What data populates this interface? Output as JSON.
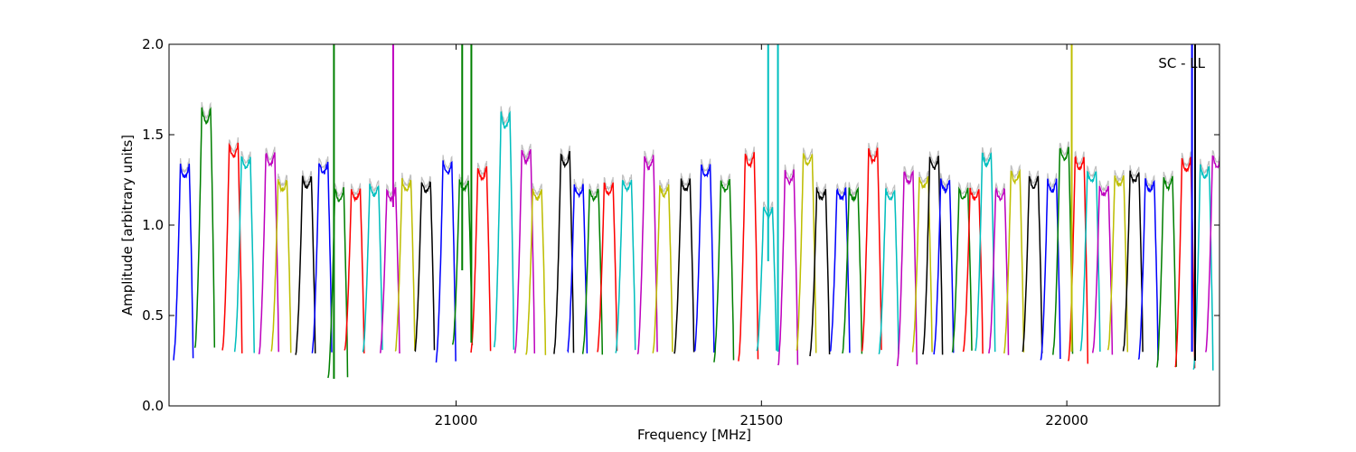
{
  "chart_data": {
    "type": "line",
    "title": "",
    "annotation": "SC - LL",
    "xlabel": "Frequency [MHz]",
    "ylabel": "Amplitude [arbitrary units]",
    "xlim": [
      20530,
      22250
    ],
    "ylim": [
      0.0,
      2.0
    ],
    "xticks": [
      21000,
      21500,
      22000
    ],
    "xtick_labels": [
      "21000",
      "21500",
      "22000"
    ],
    "yticks": [
      0.0,
      0.5,
      1.0,
      1.5,
      2.0
    ],
    "ytick_labels": [
      "0.0",
      "0.5",
      "1.0",
      "1.5",
      "2.0"
    ],
    "grid": false,
    "legend": "none",
    "background_trace_color": "#bfbfbf",
    "color_cycle": [
      "#0000ff",
      "#008000",
      "#ff0000",
      "#00bfbf",
      "#bf00bf",
      "#bfbf00",
      "#000000"
    ],
    "band_width_mhz": 32,
    "band_peak_centers": [
      20555,
      20590,
      20635,
      20655,
      20695,
      20715,
      20755,
      20782,
      20808,
      20835,
      20865,
      20893,
      20918,
      20950,
      20985,
      21012,
      21042,
      21080,
      21114,
      21132,
      21178,
      21200,
      21225,
      21249,
      21279,
      21315,
      21340,
      21375,
      21408,
      21440,
      21480,
      21510,
      21545,
      21575,
      21597,
      21630,
      21650,
      21682,
      21710,
      21740,
      21765,
      21782,
      21800,
      21830,
      21848,
      21868,
      21890,
      21915,
      21945,
      21975,
      21995,
      22020,
      22040,
      22060,
      22085,
      22110,
      22135,
      22165,
      22195,
      22225,
      22245
    ],
    "band_peak_values": [
      1.33,
      1.65,
      1.45,
      1.38,
      1.4,
      1.25,
      1.27,
      1.35,
      1.2,
      1.2,
      1.22,
      1.2,
      1.25,
      1.24,
      1.35,
      1.25,
      1.32,
      1.62,
      1.42,
      1.2,
      1.4,
      1.22,
      1.2,
      1.23,
      1.25,
      1.38,
      1.22,
      1.25,
      1.33,
      1.25,
      1.4,
      1.1,
      1.3,
      1.4,
      1.2,
      1.2,
      1.2,
      1.42,
      1.2,
      1.3,
      1.27,
      1.38,
      1.25,
      1.2,
      1.2,
      1.4,
      1.2,
      1.3,
      1.27,
      1.25,
      1.43,
      1.38,
      1.3,
      1.22,
      1.28,
      1.3,
      1.25,
      1.27,
      1.37,
      1.33,
      1.39
    ],
    "band_min_values": [
      0.26,
      0.32,
      0.3,
      0.3,
      0.29,
      0.3,
      0.29,
      0.3,
      0.15,
      0.3,
      0.3,
      0.29,
      0.3,
      0.3,
      0.25,
      0.33,
      0.3,
      0.32,
      0.29,
      0.28,
      0.29,
      0.3,
      0.29,
      0.3,
      0.3,
      0.29,
      0.3,
      0.29,
      0.3,
      0.25,
      0.25,
      0.3,
      0.23,
      0.3,
      0.28,
      0.3,
      0.29,
      0.3,
      0.29,
      0.22,
      0.3,
      0.29,
      0.29,
      0.3,
      0.29,
      0.3,
      0.29,
      0.3,
      0.3,
      0.25,
      0.29,
      0.24,
      0.3,
      0.29,
      0.3,
      0.3,
      0.25,
      0.21,
      0.21,
      0.2,
      0.3
    ],
    "spikes": [
      {
        "x": 20800,
        "ymin": 0.15,
        "ymax": 2.0,
        "color": "#008000"
      },
      {
        "x": 20897,
        "ymin": 1.1,
        "ymax": 2.0,
        "color": "#bf00bf"
      },
      {
        "x": 21010,
        "ymin": 0.75,
        "ymax": 2.0,
        "color": "#008000"
      },
      {
        "x": 21025,
        "ymin": 0.35,
        "ymax": 2.0,
        "color": "#008000"
      },
      {
        "x": 21511,
        "ymin": 0.8,
        "ymax": 2.0,
        "color": "#00bfbf"
      },
      {
        "x": 21527,
        "ymin": 0.3,
        "ymax": 2.0,
        "color": "#00bfbf"
      },
      {
        "x": 22008,
        "ymin": 0.3,
        "ymax": 2.0,
        "color": "#bfbf00"
      },
      {
        "x": 22205,
        "ymin": 0.3,
        "ymax": 2.0,
        "color": "#0000ff"
      },
      {
        "x": 22210,
        "ymin": 0.25,
        "ymax": 2.0,
        "color": "#000000"
      }
    ]
  }
}
